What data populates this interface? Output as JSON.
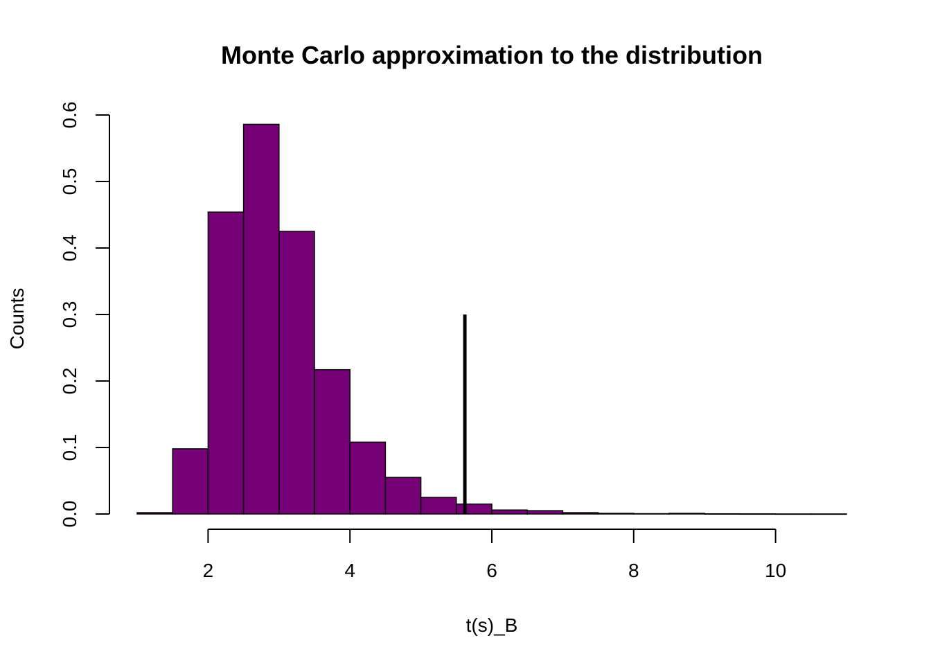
{
  "chart_data": {
    "type": "bar",
    "title": "Monte Carlo approximation to the distribution",
    "xlabel": "t(s)_B",
    "ylabel": "Counts",
    "bar_color": "#760075",
    "xlim": [
      1,
      11
    ],
    "ylim": [
      0,
      0.6
    ],
    "x_ticks": [
      2,
      4,
      6,
      8,
      10
    ],
    "x_tick_labels": [
      "2",
      "4",
      "6",
      "8",
      "10"
    ],
    "y_ticks": [
      0.0,
      0.1,
      0.2,
      0.3,
      0.4,
      0.5,
      0.6
    ],
    "y_tick_labels": [
      "0.0",
      "0.1",
      "0.2",
      "0.3",
      "0.4",
      "0.5",
      "0.6"
    ],
    "bin_edges": [
      1.0,
      1.5,
      2.0,
      2.5,
      3.0,
      3.5,
      4.0,
      4.5,
      5.0,
      5.5,
      6.0,
      6.5,
      7.0,
      7.5,
      8.0,
      8.5,
      9.0,
      9.5,
      10.0,
      10.5,
      11.0
    ],
    "values": [
      0.002,
      0.098,
      0.454,
      0.586,
      0.425,
      0.217,
      0.108,
      0.055,
      0.025,
      0.015,
      0.006,
      0.005,
      0.002,
      0.001,
      0.0005,
      0.001,
      0.0003,
      0.0002,
      0.0001,
      0.0001
    ],
    "reference_line": {
      "x": 5.62,
      "y_from": 0,
      "y_to": 0.3,
      "color": "#000000"
    },
    "grid": false,
    "legend": "none"
  }
}
